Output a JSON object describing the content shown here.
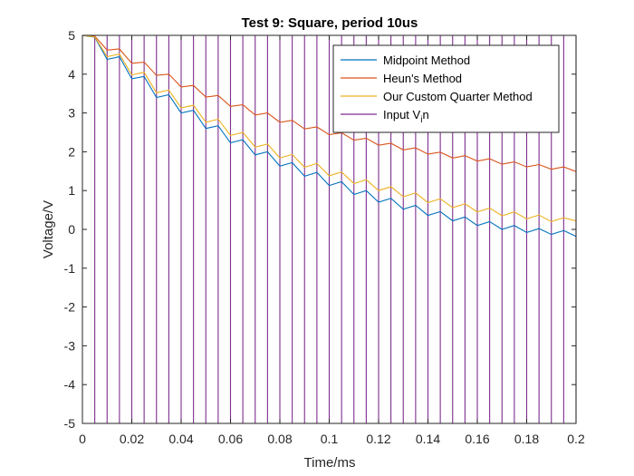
{
  "chart_data": {
    "type": "line",
    "title": "Test 9: Square, period 10us",
    "xlabel": "Time/ms",
    "ylabel": "Voltage/V",
    "xlim": [
      0,
      0.2
    ],
    "ylim": [
      -5,
      5
    ],
    "xticks": [
      0,
      0.02,
      0.04,
      0.06,
      0.08,
      0.1,
      0.12,
      0.14,
      0.16,
      0.18,
      0.2
    ],
    "xtick_labels": [
      "0",
      "0.02",
      "0.04",
      "0.06",
      "0.08",
      "0.1",
      "0.12",
      "0.14",
      "0.16",
      "0.18",
      "0.2"
    ],
    "yticks": [
      -5,
      -4,
      -3,
      -2,
      -1,
      0,
      1,
      2,
      3,
      4,
      5
    ],
    "ytick_labels": [
      "-5",
      "-4",
      "-3",
      "-2",
      "-1",
      "0",
      "1",
      "2",
      "3",
      "4",
      "5"
    ],
    "grid": false,
    "legend_position": "top-right",
    "series": [
      {
        "name": "Midpoint Method",
        "color": "#0072BD",
        "x": [
          0,
          0.005,
          0.01,
          0.015,
          0.02,
          0.025,
          0.03,
          0.035,
          0.04,
          0.045,
          0.05,
          0.055,
          0.06,
          0.065,
          0.07,
          0.075,
          0.08,
          0.085,
          0.09,
          0.095,
          0.1,
          0.105,
          0.11,
          0.115,
          0.12,
          0.125,
          0.13,
          0.135,
          0.14,
          0.145,
          0.15,
          0.155,
          0.16,
          0.165,
          0.17,
          0.175,
          0.18,
          0.185,
          0.19,
          0.195,
          0.2
        ],
        "y": [
          5,
          4.95,
          4.38,
          4.45,
          3.88,
          3.94,
          3.4,
          3.47,
          3,
          3.07,
          2.6,
          2.67,
          2.23,
          2.31,
          1.92,
          2.0,
          1.63,
          1.72,
          1.37,
          1.47,
          1.13,
          1.23,
          0.9,
          1.0,
          0.7,
          0.8,
          0.52,
          0.62,
          0.36,
          0.46,
          0.22,
          0.32,
          0.1,
          0.2,
          0.0,
          0.1,
          -0.08,
          0.02,
          -0.13,
          -0.03,
          -0.18
        ]
      },
      {
        "name": "Heun's Method",
        "color": "#D95319",
        "x": [
          0,
          0.005,
          0.01,
          0.015,
          0.02,
          0.025,
          0.03,
          0.035,
          0.04,
          0.045,
          0.05,
          0.055,
          0.06,
          0.065,
          0.07,
          0.075,
          0.08,
          0.085,
          0.09,
          0.095,
          0.1,
          0.105,
          0.11,
          0.115,
          0.12,
          0.125,
          0.13,
          0.135,
          0.14,
          0.145,
          0.15,
          0.155,
          0.16,
          0.165,
          0.17,
          0.175,
          0.18,
          0.185,
          0.19,
          0.195,
          0.2
        ],
        "y": [
          5,
          4.98,
          4.62,
          4.65,
          4.28,
          4.31,
          3.97,
          4.0,
          3.67,
          3.71,
          3.41,
          3.45,
          3.17,
          3.21,
          2.95,
          3.0,
          2.76,
          2.81,
          2.59,
          2.64,
          2.44,
          2.49,
          2.3,
          2.35,
          2.17,
          2.22,
          2.05,
          2.1,
          1.94,
          1.99,
          1.84,
          1.9,
          1.76,
          1.82,
          1.68,
          1.74,
          1.61,
          1.67,
          1.55,
          1.61,
          1.49
        ]
      },
      {
        "name": "Our Custom Quarter Method",
        "color": "#EDB120",
        "x": [
          0,
          0.005,
          0.01,
          0.015,
          0.02,
          0.025,
          0.03,
          0.035,
          0.04,
          0.045,
          0.05,
          0.055,
          0.06,
          0.065,
          0.07,
          0.075,
          0.08,
          0.085,
          0.09,
          0.095,
          0.1,
          0.105,
          0.11,
          0.115,
          0.12,
          0.125,
          0.13,
          0.135,
          0.14,
          0.145,
          0.15,
          0.155,
          0.16,
          0.165,
          0.17,
          0.175,
          0.18,
          0.185,
          0.19,
          0.195,
          0.2
        ],
        "y": [
          5,
          4.96,
          4.45,
          4.52,
          3.98,
          4.05,
          3.52,
          3.59,
          3.13,
          3.2,
          2.76,
          2.84,
          2.42,
          2.5,
          2.12,
          2.2,
          1.84,
          1.93,
          1.6,
          1.7,
          1.38,
          1.48,
          1.18,
          1.28,
          1.0,
          1.1,
          0.84,
          0.94,
          0.69,
          0.79,
          0.56,
          0.66,
          0.45,
          0.55,
          0.35,
          0.45,
          0.27,
          0.37,
          0.2,
          0.3,
          0.22
        ]
      },
      {
        "name": "Input V",
        "name_subscript": "i",
        "name_suffix": "n",
        "color": "#7E2F8E",
        "kind": "square",
        "period": 0.01,
        "high": 5,
        "low": -5
      }
    ]
  }
}
